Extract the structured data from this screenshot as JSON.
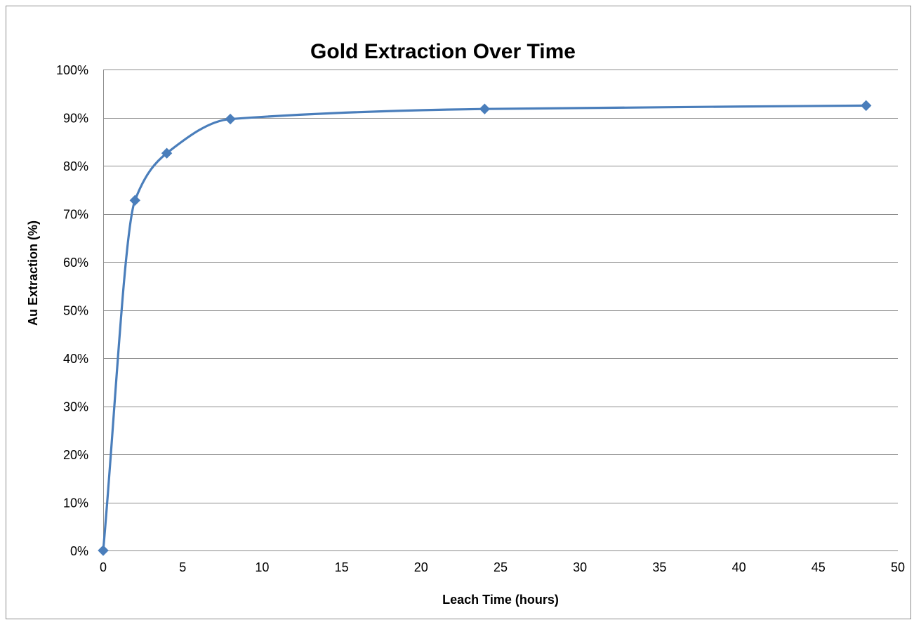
{
  "chart_data": {
    "type": "line",
    "title": "Gold Extraction Over Time",
    "xlabel": "Leach Time (hours)",
    "ylabel": "Au Extraction (%)",
    "xlim": [
      0,
      50
    ],
    "ylim": [
      0,
      100
    ],
    "x_ticks": [
      0,
      5,
      10,
      15,
      20,
      25,
      30,
      35,
      40,
      45,
      50
    ],
    "y_ticks": [
      0,
      10,
      20,
      30,
      40,
      50,
      60,
      70,
      80,
      90,
      100
    ],
    "y_tick_labels": [
      "0%",
      "10%",
      "20%",
      "30%",
      "40%",
      "50%",
      "60%",
      "70%",
      "80%",
      "90%",
      "100%"
    ],
    "grid": {
      "horizontal": true,
      "vertical": false
    },
    "smoothed": true,
    "marker": "diamond",
    "series": [
      {
        "color": "#4a7ebb",
        "x": [
          0,
          2,
          4,
          8,
          24,
          48
        ],
        "y": [
          0,
          72.8,
          82.6,
          89.7,
          91.8,
          92.5
        ]
      }
    ]
  }
}
